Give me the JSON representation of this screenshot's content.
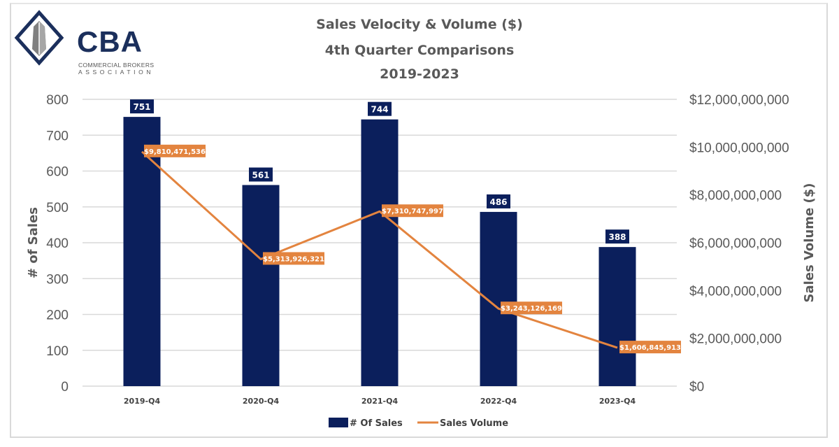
{
  "logo": {
    "name": "CBA",
    "subtitle_line1": "COMMERCIAL BROKERS",
    "subtitle_line2": "ASSOCIATION"
  },
  "colors": {
    "bar": "#0b1f5c",
    "line": "#e3843f",
    "grid": "#d9d9d9",
    "text": "#595959"
  },
  "chart_data": {
    "type": "bar",
    "title": "Sales Velocity & Volume ($)",
    "subtitle": "4th Quarter Comparisons",
    "subtitle2": "2019-2023",
    "categories": [
      "2019-Q4",
      "2020-Q4",
      "2021-Q4",
      "2022-Q4",
      "2023-Q4"
    ],
    "series": [
      {
        "name": "# Of Sales",
        "type": "bar",
        "axis": "left",
        "values": [
          751,
          561,
          744,
          486,
          388
        ],
        "labels": [
          "751",
          "561",
          "744",
          "486",
          "388"
        ]
      },
      {
        "name": "Sales Volume",
        "type": "line",
        "axis": "right",
        "values": [
          9810471536,
          5313926321,
          7310747997,
          3243126169,
          1606845913
        ],
        "labels": [
          "$9,810,471,536",
          "$5,313,926,321",
          "$7,310,747,997",
          "$3,243,126,169",
          "$1,606,845,913"
        ]
      }
    ],
    "ylabel": "# of Sales",
    "ylim": [
      0,
      800
    ],
    "yticks": [
      "0",
      "100",
      "200",
      "300",
      "400",
      "500",
      "600",
      "700",
      "800"
    ],
    "y2label": "Sales Volume ($)",
    "y2lim": [
      0,
      12000000000
    ],
    "y2ticks": [
      "$0",
      "$2,000,000,000",
      "$4,000,000,000",
      "$6,000,000,000",
      "$8,000,000,000",
      "$10,000,000,000",
      "$12,000,000,000"
    ],
    "grid": true,
    "legend": "bottom-center"
  }
}
